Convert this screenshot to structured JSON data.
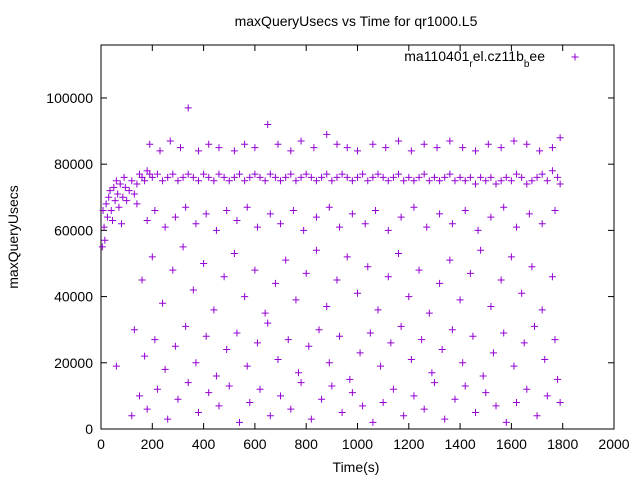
{
  "chart_data": {
    "type": "scatter",
    "title": "maxQueryUsecs vs Time for qr1000.L5",
    "xlabel": "Time(s)",
    "ylabel": "maxQueryUsecs",
    "xlim": [
      0,
      2000
    ],
    "ylim": [
      0,
      116000
    ],
    "x_ticks": [
      "0",
      "200",
      "400",
      "600",
      "800",
      "1000",
      "1200",
      "1400",
      "1600",
      "1800",
      "2000"
    ],
    "y_ticks": [
      "0",
      "20000",
      "40000",
      "60000",
      "80000",
      "100000"
    ],
    "legend_position": "top-right",
    "marker": "plus",
    "color": "#9400d3",
    "series": [
      {
        "name_parts": [
          {
            "text": "ma110401",
            "sub": false
          },
          {
            "text": "r",
            "sub": true
          },
          {
            "text": "el.cz11b",
            "sub": false
          },
          {
            "text": "b",
            "sub": true
          },
          {
            "text": "ee",
            "sub": false
          }
        ],
        "points": [
          [
            5,
            55000
          ],
          [
            8,
            66000
          ],
          [
            12,
            61000
          ],
          [
            15,
            57000
          ],
          [
            20,
            68000
          ],
          [
            25,
            64000
          ],
          [
            30,
            70000
          ],
          [
            35,
            72000
          ],
          [
            40,
            66000
          ],
          [
            45,
            63000
          ],
          [
            50,
            73000
          ],
          [
            55,
            69000
          ],
          [
            60,
            75000
          ],
          [
            65,
            71000
          ],
          [
            70,
            67000
          ],
          [
            75,
            74000
          ],
          [
            80,
            62000
          ],
          [
            85,
            70000
          ],
          [
            90,
            76000
          ],
          [
            95,
            73000
          ],
          [
            100,
            69000
          ],
          [
            110,
            72000
          ],
          [
            120,
            75000
          ],
          [
            130,
            71000
          ],
          [
            140,
            74000
          ],
          [
            150,
            77000
          ],
          [
            160,
            76000
          ],
          [
            170,
            75000
          ],
          [
            180,
            78000
          ],
          [
            190,
            77000
          ],
          [
            200,
            76000
          ],
          [
            220,
            77000
          ],
          [
            240,
            75000
          ],
          [
            260,
            76000
          ],
          [
            280,
            77000
          ],
          [
            300,
            75000
          ],
          [
            320,
            76000
          ],
          [
            340,
            77000
          ],
          [
            360,
            76000
          ],
          [
            380,
            75000
          ],
          [
            400,
            77000
          ],
          [
            420,
            76000
          ],
          [
            440,
            75000
          ],
          [
            460,
            77000
          ],
          [
            480,
            76000
          ],
          [
            500,
            75000
          ],
          [
            520,
            76000
          ],
          [
            540,
            77000
          ],
          [
            560,
            75000
          ],
          [
            580,
            76000
          ],
          [
            600,
            77000
          ],
          [
            620,
            76000
          ],
          [
            640,
            75000
          ],
          [
            660,
            77000
          ],
          [
            680,
            76000
          ],
          [
            700,
            75000
          ],
          [
            720,
            76000
          ],
          [
            740,
            77000
          ],
          [
            760,
            75000
          ],
          [
            780,
            76000
          ],
          [
            800,
            77000
          ],
          [
            820,
            76000
          ],
          [
            840,
            75000
          ],
          [
            860,
            76000
          ],
          [
            880,
            77000
          ],
          [
            900,
            75000
          ],
          [
            920,
            76000
          ],
          [
            940,
            77000
          ],
          [
            960,
            76000
          ],
          [
            980,
            75000
          ],
          [
            1000,
            76000
          ],
          [
            1020,
            77000
          ],
          [
            1040,
            75000
          ],
          [
            1060,
            76000
          ],
          [
            1080,
            77000
          ],
          [
            1100,
            76000
          ],
          [
            1120,
            75000
          ],
          [
            1140,
            76000
          ],
          [
            1160,
            77000
          ],
          [
            1180,
            75000
          ],
          [
            1200,
            76000
          ],
          [
            1220,
            75000
          ],
          [
            1240,
            76000
          ],
          [
            1260,
            77000
          ],
          [
            1280,
            75000
          ],
          [
            1300,
            76000
          ],
          [
            1320,
            75000
          ],
          [
            1340,
            76000
          ],
          [
            1360,
            77000
          ],
          [
            1380,
            75000
          ],
          [
            1400,
            76000
          ],
          [
            1420,
            75000
          ],
          [
            1440,
            76000
          ],
          [
            1460,
            74000
          ],
          [
            1480,
            76000
          ],
          [
            1500,
            75000
          ],
          [
            1520,
            76000
          ],
          [
            1540,
            74000
          ],
          [
            1560,
            75000
          ],
          [
            1580,
            76000
          ],
          [
            1600,
            75000
          ],
          [
            1620,
            77000
          ],
          [
            1640,
            76000
          ],
          [
            1660,
            74000
          ],
          [
            1680,
            75000
          ],
          [
            1700,
            76000
          ],
          [
            1720,
            77000
          ],
          [
            1740,
            75000
          ],
          [
            1760,
            78000
          ],
          [
            1780,
            76000
          ],
          [
            1790,
            74000
          ],
          [
            190,
            86000
          ],
          [
            230,
            84000
          ],
          [
            270,
            87000
          ],
          [
            310,
            85000
          ],
          [
            340,
            97000
          ],
          [
            380,
            84000
          ],
          [
            420,
            86000
          ],
          [
            460,
            85000
          ],
          [
            520,
            84000
          ],
          [
            560,
            86000
          ],
          [
            600,
            85000
          ],
          [
            650,
            92000
          ],
          [
            690,
            86000
          ],
          [
            740,
            84000
          ],
          [
            780,
            87000
          ],
          [
            830,
            85000
          ],
          [
            880,
            89000
          ],
          [
            920,
            86000
          ],
          [
            960,
            85000
          ],
          [
            1000,
            84000
          ],
          [
            1060,
            86000
          ],
          [
            1110,
            85000
          ],
          [
            1160,
            87000
          ],
          [
            1210,
            84000
          ],
          [
            1260,
            86000
          ],
          [
            1310,
            85000
          ],
          [
            1360,
            87000
          ],
          [
            1410,
            85000
          ],
          [
            1460,
            84000
          ],
          [
            1510,
            86000
          ],
          [
            1560,
            85000
          ],
          [
            1610,
            87000
          ],
          [
            1660,
            86000
          ],
          [
            1710,
            84000
          ],
          [
            1760,
            85000
          ],
          [
            1790,
            88000
          ],
          [
            140,
            68000
          ],
          [
            180,
            63000
          ],
          [
            210,
            66000
          ],
          [
            250,
            61000
          ],
          [
            290,
            64000
          ],
          [
            330,
            67000
          ],
          [
            370,
            62000
          ],
          [
            410,
            65000
          ],
          [
            450,
            60000
          ],
          [
            490,
            66000
          ],
          [
            530,
            63000
          ],
          [
            570,
            67000
          ],
          [
            610,
            61000
          ],
          [
            660,
            65000
          ],
          [
            700,
            62000
          ],
          [
            750,
            66000
          ],
          [
            790,
            60000
          ],
          [
            840,
            64000
          ],
          [
            890,
            67000
          ],
          [
            930,
            61000
          ],
          [
            980,
            65000
          ],
          [
            1030,
            62000
          ],
          [
            1070,
            66000
          ],
          [
            1120,
            60000
          ],
          [
            1170,
            64000
          ],
          [
            1220,
            67000
          ],
          [
            1270,
            61000
          ],
          [
            1320,
            65000
          ],
          [
            1370,
            62000
          ],
          [
            1420,
            66000
          ],
          [
            1470,
            60000
          ],
          [
            1520,
            64000
          ],
          [
            1570,
            67000
          ],
          [
            1620,
            61000
          ],
          [
            1670,
            65000
          ],
          [
            1720,
            62000
          ],
          [
            1770,
            66000
          ],
          [
            160,
            45000
          ],
          [
            200,
            52000
          ],
          [
            240,
            38000
          ],
          [
            280,
            48000
          ],
          [
            320,
            55000
          ],
          [
            360,
            42000
          ],
          [
            400,
            50000
          ],
          [
            440,
            36000
          ],
          [
            480,
            46000
          ],
          [
            520,
            53000
          ],
          [
            560,
            40000
          ],
          [
            600,
            48000
          ],
          [
            640,
            35000
          ],
          [
            680,
            44000
          ],
          [
            720,
            51000
          ],
          [
            760,
            39000
          ],
          [
            800,
            47000
          ],
          [
            840,
            54000
          ],
          [
            880,
            37000
          ],
          [
            920,
            45000
          ],
          [
            960,
            52000
          ],
          [
            1000,
            41000
          ],
          [
            1040,
            49000
          ],
          [
            1080,
            36000
          ],
          [
            1120,
            46000
          ],
          [
            1160,
            53000
          ],
          [
            1200,
            40000
          ],
          [
            1240,
            48000
          ],
          [
            1280,
            35000
          ],
          [
            1320,
            44000
          ],
          [
            1360,
            51000
          ],
          [
            1400,
            39000
          ],
          [
            1440,
            47000
          ],
          [
            1480,
            54000
          ],
          [
            1520,
            37000
          ],
          [
            1560,
            45000
          ],
          [
            1600,
            52000
          ],
          [
            1640,
            41000
          ],
          [
            1680,
            49000
          ],
          [
            1720,
            36000
          ],
          [
            1760,
            46000
          ],
          [
            130,
            30000
          ],
          [
            170,
            22000
          ],
          [
            210,
            27000
          ],
          [
            250,
            18000
          ],
          [
            290,
            25000
          ],
          [
            330,
            31000
          ],
          [
            370,
            20000
          ],
          [
            410,
            28000
          ],
          [
            450,
            16000
          ],
          [
            490,
            24000
          ],
          [
            530,
            29000
          ],
          [
            570,
            19000
          ],
          [
            610,
            26000
          ],
          [
            650,
            32000
          ],
          [
            690,
            21000
          ],
          [
            730,
            27000
          ],
          [
            770,
            17000
          ],
          [
            810,
            25000
          ],
          [
            850,
            30000
          ],
          [
            890,
            20000
          ],
          [
            930,
            28000
          ],
          [
            970,
            15000
          ],
          [
            1010,
            23000
          ],
          [
            1050,
            29000
          ],
          [
            1090,
            19000
          ],
          [
            1130,
            26000
          ],
          [
            1170,
            31000
          ],
          [
            1210,
            21000
          ],
          [
            1250,
            27000
          ],
          [
            1290,
            17000
          ],
          [
            1330,
            24000
          ],
          [
            1370,
            30000
          ],
          [
            1410,
            20000
          ],
          [
            1450,
            28000
          ],
          [
            1490,
            16000
          ],
          [
            1530,
            23000
          ],
          [
            1570,
            29000
          ],
          [
            1610,
            19000
          ],
          [
            1650,
            26000
          ],
          [
            1690,
            31000
          ],
          [
            1730,
            21000
          ],
          [
            1770,
            27000
          ],
          [
            60,
            19000
          ],
          [
            120,
            4000
          ],
          [
            150,
            10000
          ],
          [
            180,
            6000
          ],
          [
            220,
            12000
          ],
          [
            260,
            3000
          ],
          [
            300,
            9000
          ],
          [
            340,
            14000
          ],
          [
            380,
            5000
          ],
          [
            420,
            11000
          ],
          [
            460,
            7000
          ],
          [
            500,
            13000
          ],
          [
            540,
            2000
          ],
          [
            580,
            8000
          ],
          [
            620,
            12000
          ],
          [
            660,
            4000
          ],
          [
            700,
            10000
          ],
          [
            740,
            6000
          ],
          [
            780,
            14000
          ],
          [
            820,
            3000
          ],
          [
            860,
            9000
          ],
          [
            900,
            13000
          ],
          [
            940,
            5000
          ],
          [
            980,
            11000
          ],
          [
            1020,
            7000
          ],
          [
            1060,
            2000
          ],
          [
            1100,
            8000
          ],
          [
            1140,
            12000
          ],
          [
            1180,
            4000
          ],
          [
            1220,
            10000
          ],
          [
            1260,
            6000
          ],
          [
            1300,
            14000
          ],
          [
            1340,
            3000
          ],
          [
            1380,
            9000
          ],
          [
            1420,
            13000
          ],
          [
            1460,
            5000
          ],
          [
            1500,
            11000
          ],
          [
            1540,
            7000
          ],
          [
            1580,
            2000
          ],
          [
            1620,
            8000
          ],
          [
            1660,
            12000
          ],
          [
            1700,
            4000
          ],
          [
            1740,
            10000
          ],
          [
            1780,
            15000
          ],
          [
            1790,
            8000
          ]
        ]
      }
    ]
  }
}
